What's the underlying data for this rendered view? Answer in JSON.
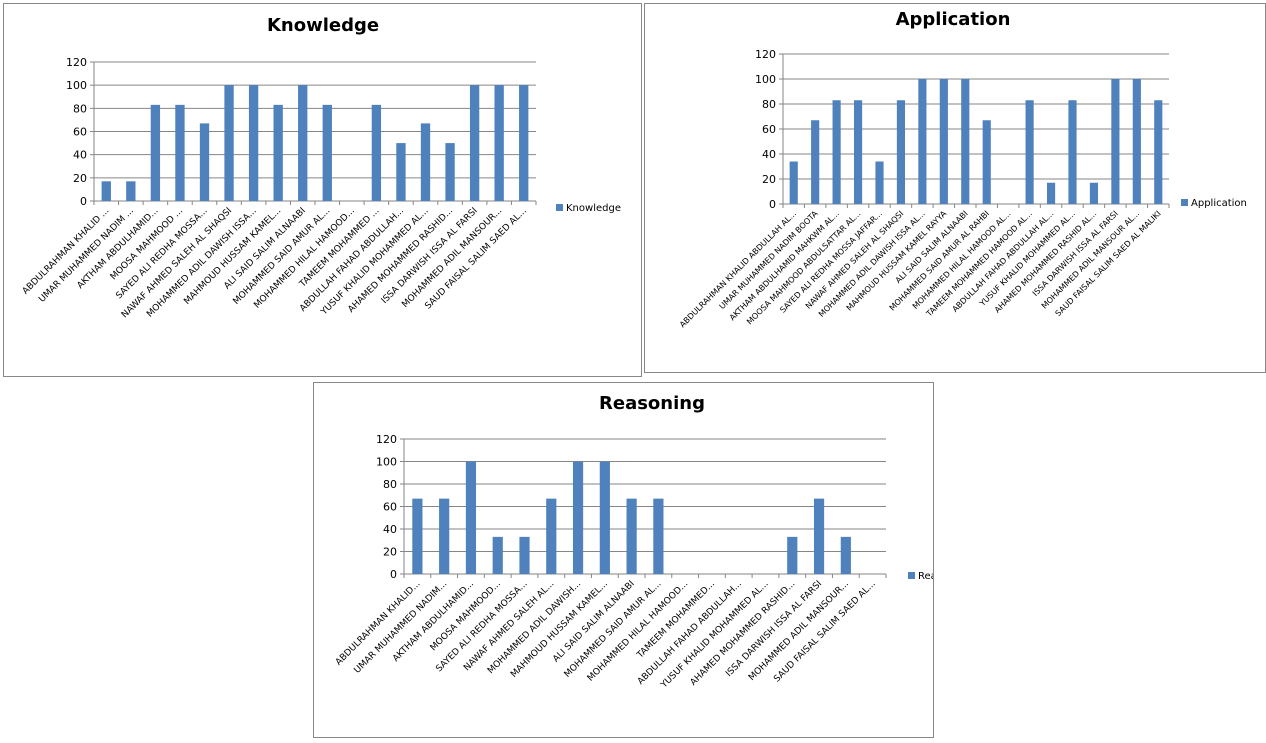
{
  "chart_data": [
    {
      "type": "bar",
      "title": "Knowledge",
      "legend": "Knowledge",
      "legend_position": "right",
      "ylim": [
        0,
        120
      ],
      "yticks": [
        0,
        20,
        40,
        60,
        80,
        100,
        120
      ],
      "grid": true,
      "color": "#4F81BD",
      "categories": [
        "ABDULRAHMAN KHALID ...",
        "UMAR MUHAMMED NADIM ...",
        "AKTHAM ABDULHAMID...",
        "MOOSA MAHMOOD ...",
        "SAYED ALI REDHA MOSSA...",
        "NAWAF AHMED SALEH AL SHAQSI",
        "MOHAMMED ADIL DAWISH ISSA...",
        "MAHMOUD HUSSAM KAMEL...",
        "ALI SAID SALIM ALNAABI",
        "MOHAMMED SAID AMUR AL...",
        "MOHAMMED HILAL HAMOOD...",
        "TAMEEM MOHAMMED ...",
        "ABDULLAH FAHAD ABDULLAH...",
        "YUSUF KHALID MOHAMMED AL...",
        "AHAMED MOHAMMED RASHID...",
        "ISSA DARWISH ISSA AL FARSI",
        "MOHAMMED ADIL MANSOUR...",
        "SAUD FAISAL SALIM SAED AL..."
      ],
      "values": [
        17,
        17,
        83,
        83,
        67,
        100,
        100,
        83,
        100,
        83,
        0,
        83,
        50,
        67,
        50,
        100,
        100,
        100
      ]
    },
    {
      "type": "bar",
      "title": "Application",
      "legend": "Application",
      "legend_position": "right",
      "ylim": [
        0,
        120
      ],
      "yticks": [
        0,
        20,
        40,
        60,
        80,
        100,
        120
      ],
      "grid": true,
      "color": "#4F81BD",
      "categories": [
        "ABDULRAHMAN KHALID ABDULLAH AL...",
        "UMAR MUHAMMED NADIM BOOTA",
        "AKTHAM ABDULHAMID MAHKWM AL...",
        "MOOSA MAHMOOD ABDULSATTAR AL...",
        "SAYED ALI REDHA MOSSA JAFFAR...",
        "NAWAF AHMED SALEH AL SHAQSI",
        "MOHAMMED ADIL DAWISH ISSA AL...",
        "MAHMOUD HUSSAM KAMEL RAYYA",
        "ALI SAID SALIM ALNAABI",
        "MOHAMMED SAID AMUR AL RAHBI",
        "MOHAMMED HILAL HAMOOD AL...",
        "TAMEEM MOHAMMED HAMOOD AL...",
        "ABDULLAH FAHAD ABDULLAH AL...",
        "YUSUF KHALID MOHAMMED AL...",
        "AHAMED MOHAMMED RASHID AL...",
        "ISSA DARWISH ISSA AL FARSI",
        "MOHAMMED ADIL MANSOUR AL...",
        "SAUD FAISAL SALIM SAED AL MALIKI"
      ],
      "values": [
        34,
        67,
        83,
        83,
        34,
        83,
        100,
        100,
        100,
        67,
        0,
        83,
        17,
        83,
        17,
        100,
        100,
        83
      ]
    },
    {
      "type": "bar",
      "title": "Reasoning",
      "legend": "Reasoning",
      "legend_position": "right",
      "ylim": [
        0,
        120
      ],
      "yticks": [
        0,
        20,
        40,
        60,
        80,
        100,
        120
      ],
      "grid": true,
      "color": "#4F81BD",
      "categories": [
        "ABDULRAHMAN KHALID...",
        "UMAR MUHAMMED NADIM...",
        "AKTHAM ABDULHAMID...",
        "MOOSA MAHMOOD...",
        "SAYED ALI REDHA MOSSA...",
        "NAWAF AHMED SALEH AL...",
        "MOHAMMED ADIL DAWISH...",
        "MAHMOUD HUSSAM KAMEL...",
        "ALI SAID SALIM ALNAABI",
        "MOHAMMED SAID AMUR AL...",
        "MOHAMMED HILAL HAMOOD...",
        "TAMEEM MOHAMMED...",
        "ABDULLAH FAHAD ABDULLAH...",
        "YUSUF KHALID MOHAMMED AL...",
        "AHAMED MOHAMMED RASHID...",
        "ISSA DARWISH ISSA AL FARSI",
        "MOHAMMED ADIL MANSOUR...",
        "SAUD FAISAL SALIM SAED AL..."
      ],
      "values": [
        67,
        67,
        100,
        33,
        33,
        67,
        100,
        100,
        67,
        67,
        0,
        0,
        0,
        0,
        33,
        67,
        33,
        0
      ]
    }
  ]
}
